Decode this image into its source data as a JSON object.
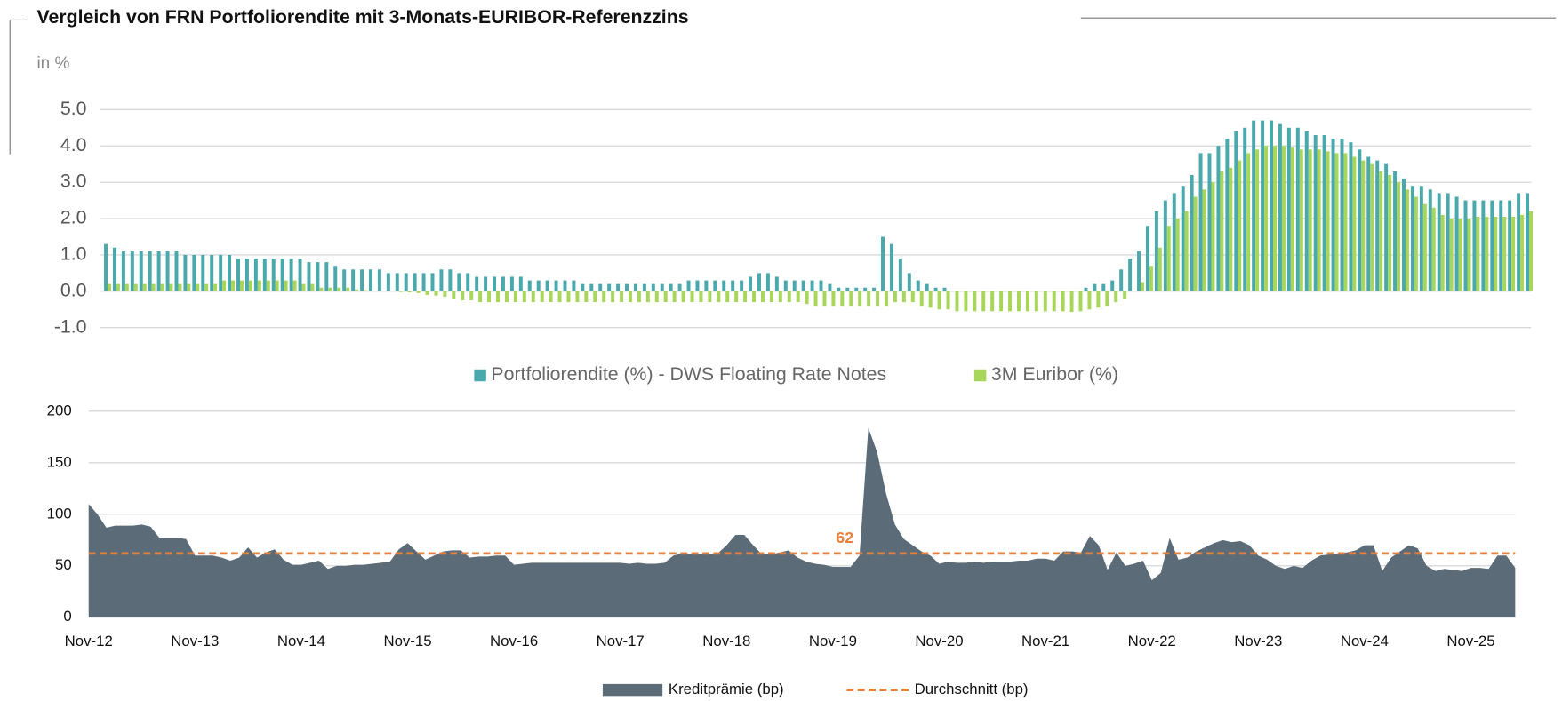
{
  "chart_data": [
    {
      "type": "bar",
      "title": "Vergleich von FRN Portfoliorendite mit 3-Monats-EURIBOR-Referenzzins",
      "ylabel": "in %",
      "ylim": [
        -1,
        5
      ],
      "yticks": [
        {
          "value": -1,
          "label": "-1.0"
        },
        {
          "value": 0,
          "label": "0.0"
        },
        {
          "value": 1,
          "label": "1.0"
        },
        {
          "value": 2,
          "label": "2.0"
        },
        {
          "value": 3,
          "label": "3.0"
        },
        {
          "value": 4,
          "label": "4.0"
        },
        {
          "value": 5,
          "label": "5.0"
        }
      ],
      "grid": true,
      "legend": "bottom",
      "series": [
        {
          "name": "Portfoliorendite (%) - DWS Floating Rate Notes",
          "color": "#4aa9ad",
          "values": [
            1.3,
            1.2,
            1.1,
            1.1,
            1.1,
            1.1,
            1.1,
            1.1,
            1.1,
            1.0,
            1.0,
            1.0,
            1.0,
            1.0,
            1.0,
            0.9,
            0.9,
            0.9,
            0.9,
            0.9,
            0.9,
            0.9,
            0.9,
            0.8,
            0.8,
            0.8,
            0.7,
            0.6,
            0.6,
            0.6,
            0.6,
            0.6,
            0.5,
            0.5,
            0.5,
            0.5,
            0.5,
            0.5,
            0.6,
            0.6,
            0.5,
            0.5,
            0.4,
            0.4,
            0.4,
            0.4,
            0.4,
            0.4,
            0.3,
            0.3,
            0.3,
            0.3,
            0.3,
            0.3,
            0.2,
            0.2,
            0.2,
            0.2,
            0.2,
            0.2,
            0.2,
            0.2,
            0.2,
            0.2,
            0.2,
            0.2,
            0.3,
            0.3,
            0.3,
            0.3,
            0.3,
            0.3,
            0.3,
            0.4,
            0.5,
            0.5,
            0.4,
            0.3,
            0.3,
            0.3,
            0.3,
            0.3,
            0.2,
            0.1,
            0.1,
            0.1,
            0.1,
            0.1,
            1.5,
            1.3,
            0.9,
            0.5,
            0.3,
            0.2,
            0.1,
            0.1,
            0,
            0,
            0,
            0,
            0,
            0,
            0,
            0,
            0,
            0,
            0,
            0,
            0,
            0,
            0,
            0.1,
            0.2,
            0.2,
            0.3,
            0.6,
            0.9,
            1.1,
            1.8,
            2.2,
            2.5,
            2.7,
            2.9,
            3.2,
            3.8,
            3.8,
            4.0,
            4.2,
            4.4,
            4.5,
            4.7,
            4.7,
            4.7,
            4.6,
            4.5,
            4.5,
            4.4,
            4.3,
            4.3,
            4.2,
            4.2,
            4.1,
            3.9,
            3.7,
            3.6,
            3.5,
            3.3,
            3.1,
            2.9,
            2.9,
            2.8,
            2.7,
            2.7,
            2.6,
            2.5,
            2.5,
            2.5,
            2.5,
            2.5,
            2.5,
            2.7,
            2.7
          ]
        },
        {
          "name": "3M Euribor (%)",
          "color": "#a8d65a",
          "values": [
            0.2,
            0.2,
            0.2,
            0.2,
            0.2,
            0.2,
            0.2,
            0.2,
            0.2,
            0.2,
            0.2,
            0.2,
            0.2,
            0.3,
            0.3,
            0.3,
            0.3,
            0.3,
            0.3,
            0.3,
            0.3,
            0.3,
            0.2,
            0.2,
            0.1,
            0.1,
            0.1,
            0.1,
            0.05,
            0.03,
            0,
            0,
            0,
            -0.02,
            -0.03,
            -0.05,
            -0.1,
            -0.12,
            -0.15,
            -0.2,
            -0.25,
            -0.25,
            -0.3,
            -0.3,
            -0.3,
            -0.3,
            -0.3,
            -0.3,
            -0.3,
            -0.3,
            -0.3,
            -0.3,
            -0.3,
            -0.3,
            -0.3,
            -0.3,
            -0.3,
            -0.3,
            -0.3,
            -0.3,
            -0.3,
            -0.3,
            -0.3,
            -0.3,
            -0.3,
            -0.3,
            -0.3,
            -0.3,
            -0.3,
            -0.3,
            -0.3,
            -0.3,
            -0.3,
            -0.3,
            -0.3,
            -0.3,
            -0.3,
            -0.3,
            -0.3,
            -0.35,
            -0.4,
            -0.4,
            -0.4,
            -0.4,
            -0.4,
            -0.4,
            -0.4,
            -0.4,
            -0.4,
            -0.3,
            -0.3,
            -0.3,
            -0.4,
            -0.45,
            -0.5,
            -0.5,
            -0.55,
            -0.55,
            -0.55,
            -0.55,
            -0.55,
            -0.55,
            -0.55,
            -0.55,
            -0.55,
            -0.55,
            -0.55,
            -0.55,
            -0.55,
            -0.57,
            -0.55,
            -0.5,
            -0.45,
            -0.4,
            -0.3,
            -0.2,
            0,
            0.25,
            0.7,
            1.2,
            1.8,
            2.0,
            2.2,
            2.6,
            2.8,
            3.0,
            3.3,
            3.4,
            3.6,
            3.8,
            3.9,
            4.0,
            4.0,
            4.0,
            3.95,
            3.9,
            3.9,
            3.9,
            3.85,
            3.8,
            3.8,
            3.7,
            3.6,
            3.5,
            3.3,
            3.2,
            3.0,
            2.8,
            2.6,
            2.4,
            2.3,
            2.1,
            2.0,
            2.0,
            2.0,
            2.05,
            2.05,
            2.05,
            2.05,
            2.05,
            2.1,
            2.2
          ]
        }
      ]
    },
    {
      "type": "area",
      "ylim": [
        0,
        200
      ],
      "yticks": [
        0,
        50,
        100,
        150,
        200
      ],
      "grid": true,
      "legend": "bottom",
      "categories": [
        "Nov-12",
        null,
        null,
        null,
        null,
        null,
        null,
        null,
        null,
        null,
        null,
        null,
        "Nov-13",
        null,
        null,
        null,
        null,
        null,
        null,
        null,
        null,
        null,
        null,
        null,
        "Nov-14",
        null,
        null,
        null,
        null,
        null,
        null,
        null,
        null,
        null,
        null,
        null,
        "Nov-15",
        null,
        null,
        null,
        null,
        null,
        null,
        null,
        null,
        null,
        null,
        null,
        "Nov-16",
        null,
        null,
        null,
        null,
        null,
        null,
        null,
        null,
        null,
        null,
        null,
        "Nov-17",
        null,
        null,
        null,
        null,
        null,
        null,
        null,
        null,
        null,
        null,
        null,
        "Nov-18",
        null,
        null,
        null,
        null,
        null,
        null,
        null,
        null,
        null,
        null,
        null,
        "Nov-19",
        null,
        null,
        null,
        null,
        null,
        null,
        null,
        null,
        null,
        null,
        null,
        "Nov-20",
        null,
        null,
        null,
        null,
        null,
        null,
        null,
        null,
        null,
        null,
        null,
        "Nov-21",
        null,
        null,
        null,
        null,
        null,
        null,
        null,
        null,
        null,
        null,
        null,
        "Nov-22",
        null,
        null,
        null,
        null,
        null,
        null,
        null,
        null,
        null,
        null,
        null,
        "Nov-23",
        null,
        null,
        null,
        null,
        null,
        null,
        null,
        null,
        null,
        null,
        null,
        "Nov-24",
        null,
        null,
        null,
        null,
        null,
        null,
        null,
        null,
        null,
        null,
        null,
        "Nov-25",
        null,
        null,
        null,
        null,
        null
      ],
      "series": [
        {
          "name": "Kreditprämie (bp)",
          "color": "#5b6b78",
          "values": [
            110,
            100,
            87,
            89,
            89,
            89,
            90,
            88,
            77,
            77,
            77,
            76,
            60,
            60,
            60,
            58,
            55,
            58,
            68,
            58,
            63,
            66,
            56,
            51,
            51,
            53,
            55,
            47,
            50,
            50,
            51,
            51,
            52,
            53,
            54,
            66,
            72,
            64,
            56,
            60,
            64,
            65,
            65,
            58,
            59,
            59,
            60,
            60,
            51,
            52,
            53,
            53,
            53,
            53,
            53,
            53,
            53,
            53,
            53,
            53,
            53,
            52,
            53,
            52,
            52,
            53,
            60,
            62,
            61,
            61,
            61,
            62,
            70,
            80,
            80,
            70,
            61,
            61,
            63,
            65,
            58,
            54,
            52,
            51,
            49,
            49,
            49,
            60,
            184,
            160,
            120,
            90,
            76,
            70,
            64,
            60,
            52,
            54,
            53,
            53,
            54,
            53,
            54,
            54,
            54,
            55,
            55,
            57,
            57,
            55,
            64,
            64,
            63,
            79,
            70,
            46,
            63,
            50,
            52,
            55,
            36,
            43,
            77,
            56,
            58,
            64,
            68,
            72,
            75,
            73,
            74,
            70,
            60,
            56,
            50,
            47,
            50,
            48,
            55,
            60,
            61,
            62,
            63,
            65,
            70,
            70,
            45,
            58,
            64,
            70,
            67,
            50,
            45,
            47,
            46,
            45,
            48,
            48,
            47,
            60,
            60,
            48
          ]
        }
      ],
      "reference_line": {
        "name": "Durchschnitt (bp)",
        "value": 62,
        "color": "#e8803a"
      }
    }
  ]
}
